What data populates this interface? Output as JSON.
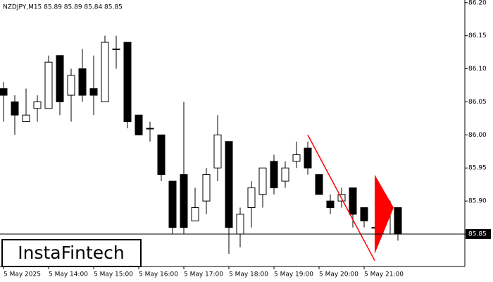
{
  "chart_data": {
    "type": "candlestick",
    "title": "NZDJPY,M15  85.89 85.89 85.84 85.85",
    "open": [
      86.07,
      86.05,
      86.02,
      86.04,
      86.04,
      86.12,
      86.06,
      86.1,
      86.07,
      86.05,
      86.13,
      86.14,
      86.03,
      86.01,
      86.0,
      85.93,
      85.94,
      85.87,
      85.9,
      85.95,
      85.99,
      85.85,
      85.89,
      85.91,
      85.96,
      85.93,
      85.96,
      85.98,
      85.94,
      85.9,
      85.9,
      85.92,
      85.89,
      85.86,
      85.85,
      85.89
    ],
    "high": [
      86.08,
      86.06,
      86.07,
      86.06,
      86.12,
      86.12,
      86.1,
      86.13,
      86.12,
      86.15,
      86.15,
      86.14,
      86.03,
      86.02,
      86.0,
      85.93,
      86.05,
      85.92,
      85.95,
      86.03,
      85.99,
      85.89,
      85.93,
      85.95,
      85.97,
      85.96,
      85.99,
      85.99,
      85.94,
      85.91,
      85.92,
      85.92,
      85.89,
      85.87,
      85.9,
      85.89
    ],
    "low": [
      86.02,
      86.0,
      86.02,
      86.02,
      86.04,
      86.03,
      86.02,
      86.05,
      86.03,
      86.05,
      86.1,
      86.01,
      86.0,
      85.99,
      85.93,
      85.85,
      85.85,
      85.87,
      85.88,
      85.93,
      85.82,
      85.83,
      85.86,
      85.89,
      85.91,
      85.92,
      85.95,
      85.94,
      85.91,
      85.88,
      85.89,
      85.86,
      85.86,
      85.85,
      85.85,
      85.84
    ],
    "close": [
      86.06,
      86.03,
      86.03,
      86.05,
      86.11,
      86.05,
      86.09,
      86.06,
      86.06,
      86.14,
      86.13,
      86.02,
      86.0,
      86.01,
      85.94,
      85.86,
      85.86,
      85.89,
      85.94,
      86.0,
      85.86,
      85.88,
      85.92,
      85.95,
      85.92,
      85.95,
      85.97,
      85.95,
      85.91,
      85.89,
      85.91,
      85.88,
      85.87,
      85.86,
      85.9,
      85.85
    ],
    "up_color": "#ffffff",
    "down_color": "#000000",
    "ylim": [
      85.801,
      86.204
    ],
    "yticks": [
      {
        "value": 86.2,
        "label": "86.20"
      },
      86.15,
      {
        "value": 86.1,
        "label": "86.10"
      },
      86.05,
      {
        "value": 86.0,
        "label": "86.00"
      },
      85.95,
      {
        "value": 85.9,
        "label": "85.90"
      },
      85.85
    ],
    "xticks": [
      {
        "value": 0,
        "label": "5 May 2025"
      },
      {
        "value": 4,
        "label": "5 May 14:00"
      },
      {
        "value": 8,
        "label": "5 May 15:00"
      },
      {
        "value": 12,
        "label": "5 May 16:00"
      },
      {
        "value": 16,
        "label": "5 May 17:00"
      },
      {
        "value": 20,
        "label": "5 May 18:00"
      },
      {
        "value": 24,
        "label": "5 May 19:00"
      },
      {
        "value": 28,
        "label": "5 May 20:00"
      },
      {
        "value": 32,
        "label": "5 May 21:00"
      }
    ],
    "last_price": 85.85,
    "pattern": {
      "color": "#ff0000",
      "pole": [
        86.0,
        85.81
      ],
      "flag": [
        85.94,
        85.82,
        85.89
      ]
    },
    "logo": "InstaFintech"
  }
}
